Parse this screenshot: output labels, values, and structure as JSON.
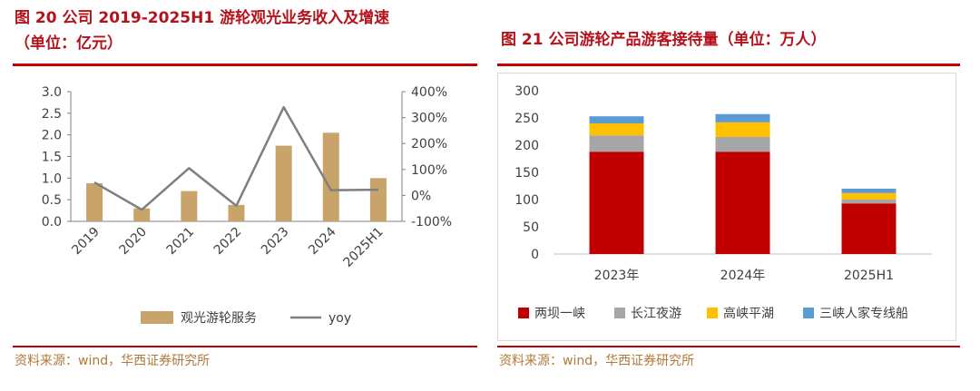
{
  "left": {
    "title_line1": "图 20 公司 2019-2025H1 游轮观光业务收入及增速",
    "title_line2": "（单位：亿元）",
    "source": "资料来源：wind，华西证券研究所"
  },
  "right": {
    "title": "图 21 公司游轮产品游客接待量（单位：万人）",
    "source": "资料来源：wind，华西证券研究所"
  },
  "colors": {
    "bar_left": "#c9a46a",
    "line_left": "#7f7f7f",
    "liangba": "#c00000",
    "changjiang": "#a6a6a6",
    "gaoxia": "#ffc000",
    "sanxia": "#5b9bd5",
    "title_red": "#b5121b"
  },
  "chart_data": [
    {
      "type": "bar",
      "title": "",
      "categories": [
        "2019",
        "2020",
        "2021",
        "2022",
        "2023",
        "2024",
        "2025H1"
      ],
      "series": [
        {
          "name": "观光游轮服务",
          "kind": "bar",
          "axis": "left",
          "values": [
            0.88,
            0.3,
            0.7,
            0.38,
            1.75,
            2.05,
            1.0
          ]
        },
        {
          "name": "yoy",
          "kind": "line",
          "axis": "right",
          "values": [
            50,
            -55,
            105,
            -40,
            340,
            20,
            22
          ]
        }
      ],
      "ylim": [
        0,
        3.0
      ],
      "yticks": [
        "0.0",
        "0.5",
        "1.0",
        "1.5",
        "2.0",
        "2.5",
        "3.0"
      ],
      "y2lim": [
        -100,
        400
      ],
      "y2ticks": [
        "-100%",
        "0%",
        "100%",
        "200%",
        "300%",
        "400%"
      ],
      "legend": [
        "观光游轮服务",
        "yoy"
      ],
      "legend_position": "bottom"
    },
    {
      "type": "bar",
      "stacked": true,
      "title": "",
      "categories": [
        "2023年",
        "2024年",
        "2025H1"
      ],
      "series": [
        {
          "name": "两坝一峡",
          "values": [
            188,
            188,
            93
          ]
        },
        {
          "name": "长江夜游",
          "values": [
            30,
            27,
            7
          ]
        },
        {
          "name": "高峡平湖",
          "values": [
            22,
            27,
            12
          ]
        },
        {
          "name": "三峡人家专线船",
          "values": [
            13,
            15,
            8
          ]
        }
      ],
      "ylim": [
        0,
        300
      ],
      "yticks": [
        "0",
        "50",
        "100",
        "150",
        "200",
        "250",
        "300"
      ],
      "legend": [
        "两坝一峡",
        "长江夜游",
        "高峡平湖",
        "三峡人家专线船"
      ],
      "legend_position": "bottom"
    }
  ]
}
